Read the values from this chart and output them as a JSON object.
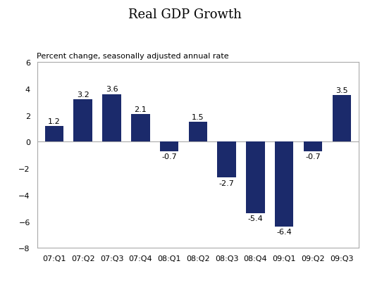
{
  "title": "Real GDP Growth",
  "subtitle": "Percent change, seasonally adjusted annual rate",
  "categories": [
    "07:Q1",
    "07:Q2",
    "07:Q3",
    "07:Q4",
    "08:Q1",
    "08:Q2",
    "08:Q3",
    "08:Q4",
    "09:Q1",
    "09:Q2",
    "09:Q3"
  ],
  "values": [
    1.2,
    3.2,
    3.6,
    2.1,
    -0.7,
    1.5,
    -2.7,
    -5.4,
    -6.4,
    -0.7,
    3.5
  ],
  "bar_color": "#1B2A6B",
  "ylim": [
    -8,
    6
  ],
  "yticks": [
    -8,
    -6,
    -4,
    -2,
    0,
    2,
    4,
    6
  ],
  "title_fontsize": 13,
  "subtitle_fontsize": 8,
  "label_fontsize": 8,
  "tick_fontsize": 8,
  "background_color": "#ffffff",
  "bar_width": 0.65,
  "spine_color": "#aaaaaa",
  "zero_line_color": "#aaaaaa"
}
